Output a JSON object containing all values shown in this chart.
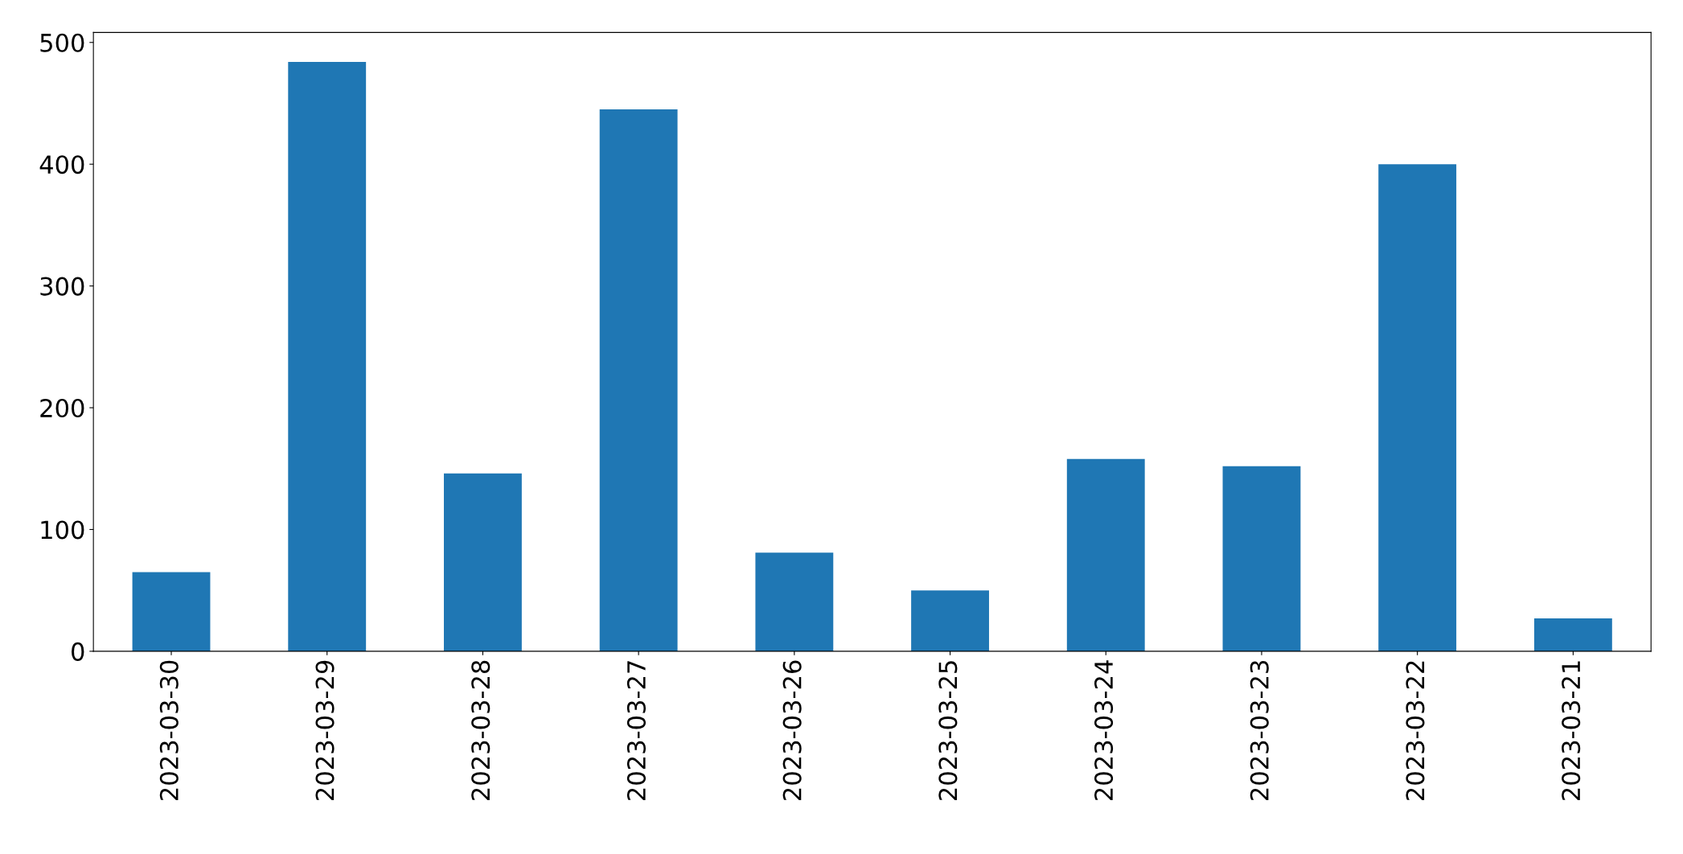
{
  "chart_data": {
    "type": "bar",
    "categories": [
      "2023-03-30",
      "2023-03-29",
      "2023-03-28",
      "2023-03-27",
      "2023-03-26",
      "2023-03-25",
      "2023-03-24",
      "2023-03-23",
      "2023-03-22",
      "2023-03-21"
    ],
    "values": [
      65,
      484,
      146,
      445,
      81,
      50,
      158,
      152,
      400,
      27
    ],
    "color": "#1f77b4",
    "ylim": [
      0,
      508.2
    ],
    "yticks": [
      0,
      100,
      200,
      300,
      400,
      500
    ],
    "grid": false,
    "legend": false
  }
}
